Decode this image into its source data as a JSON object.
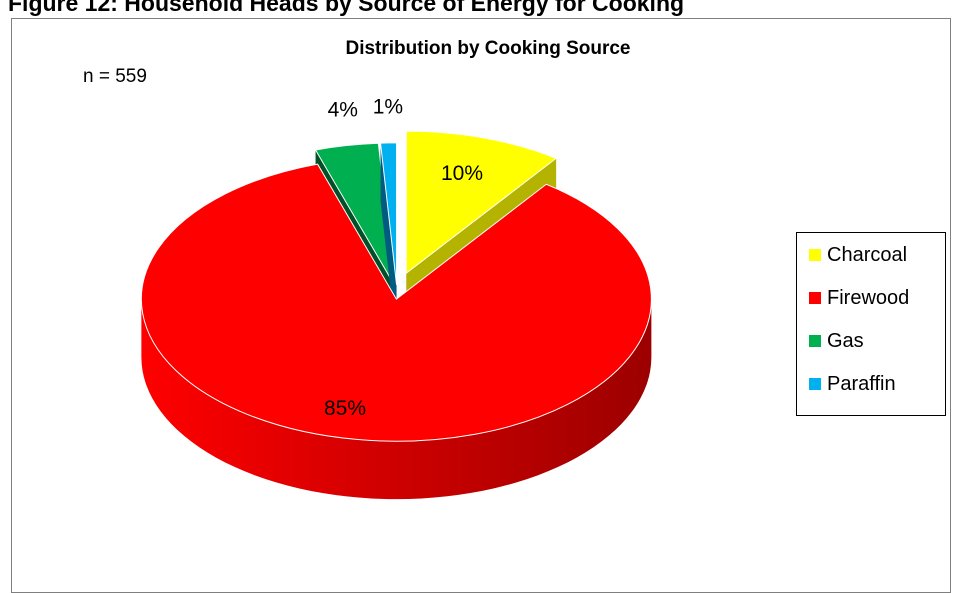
{
  "figure": {
    "caption": "Figure 12: Household Heads by Source of Energy for Cooking",
    "sample_label": "n = 559"
  },
  "chart_data": {
    "type": "pie",
    "title": "Distribution by Cooking Source",
    "three_d": true,
    "exploded": true,
    "legend_position": "right",
    "slices": [
      {
        "label": "Charcoal",
        "value": 10,
        "display": "10%",
        "color": "#ffff00",
        "side_color": "#b3b300"
      },
      {
        "label": "Firewood",
        "value": 85,
        "display": "85%",
        "color": "#ff0000",
        "side_color": "#9c0000"
      },
      {
        "label": "Gas",
        "value": 4,
        "display": "4%",
        "color": "#00b050",
        "side_color": "#005028"
      },
      {
        "label": "Paraffin",
        "value": 1,
        "display": "1%",
        "color": "#00b0f0",
        "side_color": "#005b80"
      }
    ]
  }
}
